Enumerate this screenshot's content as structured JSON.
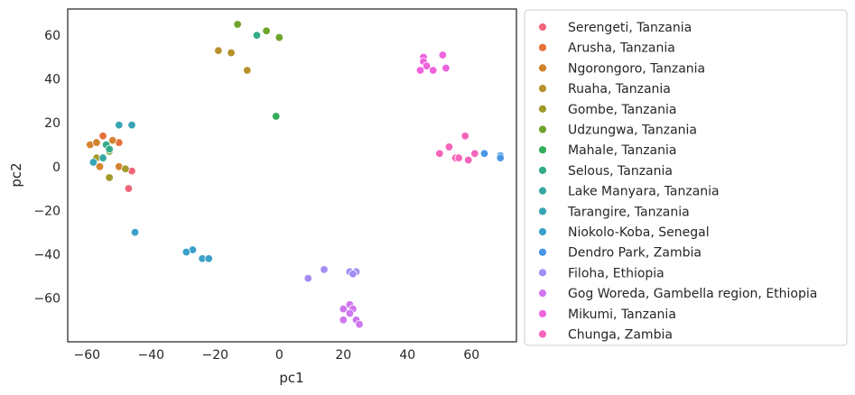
{
  "chart_data": {
    "type": "scatter",
    "xlabel": "pc1",
    "ylabel": "pc2",
    "xlim": [
      -66,
      74
    ],
    "ylim": [
      -80,
      72
    ],
    "xticks": [
      -60,
      -40,
      -20,
      0,
      20,
      40,
      60
    ],
    "yticks": [
      -60,
      -40,
      -20,
      0,
      20,
      40,
      60
    ],
    "grid": false,
    "legend_placement": "outside-right",
    "series": [
      {
        "name": "Serengeti, Tanzania",
        "color": "#f0667a",
        "points": [
          [
            -48,
            -1
          ],
          [
            -46,
            -2
          ],
          [
            -47,
            -10
          ]
        ]
      },
      {
        "name": "Arusha, Tanzania",
        "color": "#e6713a",
        "points": [
          [
            -55,
            14
          ],
          [
            -50,
            11
          ]
        ]
      },
      {
        "name": "Ngorongoro, Tanzania",
        "color": "#d3832e",
        "points": [
          [
            -59,
            10
          ],
          [
            -57,
            11
          ],
          [
            -52,
            12
          ],
          [
            -56,
            0
          ],
          [
            -50,
            0
          ]
        ]
      },
      {
        "name": "Ruaha, Tanzania",
        "color": "#b7912b",
        "points": [
          [
            -19,
            53
          ],
          [
            -15,
            52
          ],
          [
            -10,
            44
          ]
        ]
      },
      {
        "name": "Gombe, Tanzania",
        "color": "#a09b2b",
        "points": [
          [
            -57,
            4
          ],
          [
            -53,
            -5
          ],
          [
            -48,
            -1
          ]
        ]
      },
      {
        "name": "Udzungwa, Tanzania",
        "color": "#6ea42c",
        "points": [
          [
            -13,
            65
          ],
          [
            -4,
            62
          ],
          [
            0,
            59
          ],
          [
            -53,
            7
          ]
        ]
      },
      {
        "name": "Mahale, Tanzania",
        "color": "#36ac5d",
        "points": [
          [
            -1,
            23
          ]
        ]
      },
      {
        "name": "Selous, Tanzania",
        "color": "#35ab8a",
        "points": [
          [
            -7,
            60
          ],
          [
            -54,
            10
          ],
          [
            -53,
            8
          ]
        ]
      },
      {
        "name": "Lake Manyara, Tanzania",
        "color": "#37a8a1",
        "points": [
          [
            -55,
            4
          ]
        ]
      },
      {
        "name": "Tarangire, Tanzania",
        "color": "#38a5b5",
        "points": [
          [
            -50,
            19
          ],
          [
            -46,
            19
          ],
          [
            -58,
            2
          ]
        ]
      },
      {
        "name": "Niokolo-Koba, Senegal",
        "color": "#3aa1c9",
        "points": [
          [
            -45,
            -30
          ],
          [
            -27,
            -38
          ],
          [
            -29,
            -39
          ],
          [
            -24,
            -42
          ],
          [
            -22,
            -42
          ]
        ]
      },
      {
        "name": "Dendro Park, Zambia",
        "color": "#4a96e5",
        "points": [
          [
            64,
            6
          ],
          [
            69,
            5
          ],
          [
            69,
            4
          ]
        ]
      },
      {
        "name": "Filoha, Ethiopia",
        "color": "#a38cf4",
        "points": [
          [
            9,
            -51
          ],
          [
            14,
            -47
          ],
          [
            22,
            -48
          ],
          [
            24,
            -48
          ],
          [
            23,
            -49
          ]
        ]
      },
      {
        "name": "Gog Woreda, Gambella region, Ethiopia",
        "color": "#cf77f0",
        "points": [
          [
            22,
            -63
          ],
          [
            20,
            -65
          ],
          [
            23,
            -65
          ],
          [
            22,
            -67
          ],
          [
            20,
            -70
          ],
          [
            24,
            -70
          ],
          [
            25,
            -72
          ]
        ]
      },
      {
        "name": "Mikumi, Tanzania",
        "color": "#ef63dd",
        "points": [
          [
            45,
            50
          ],
          [
            45,
            48
          ],
          [
            46,
            46
          ],
          [
            44,
            44
          ],
          [
            48,
            44
          ],
          [
            51,
            51
          ],
          [
            52,
            45
          ]
        ]
      },
      {
        "name": "Chunga, Zambia",
        "color": "#f565ba",
        "points": [
          [
            50,
            6
          ],
          [
            53,
            9
          ],
          [
            55,
            4
          ],
          [
            56,
            4
          ],
          [
            58,
            14
          ],
          [
            59,
            3
          ],
          [
            61,
            6
          ]
        ]
      }
    ]
  }
}
